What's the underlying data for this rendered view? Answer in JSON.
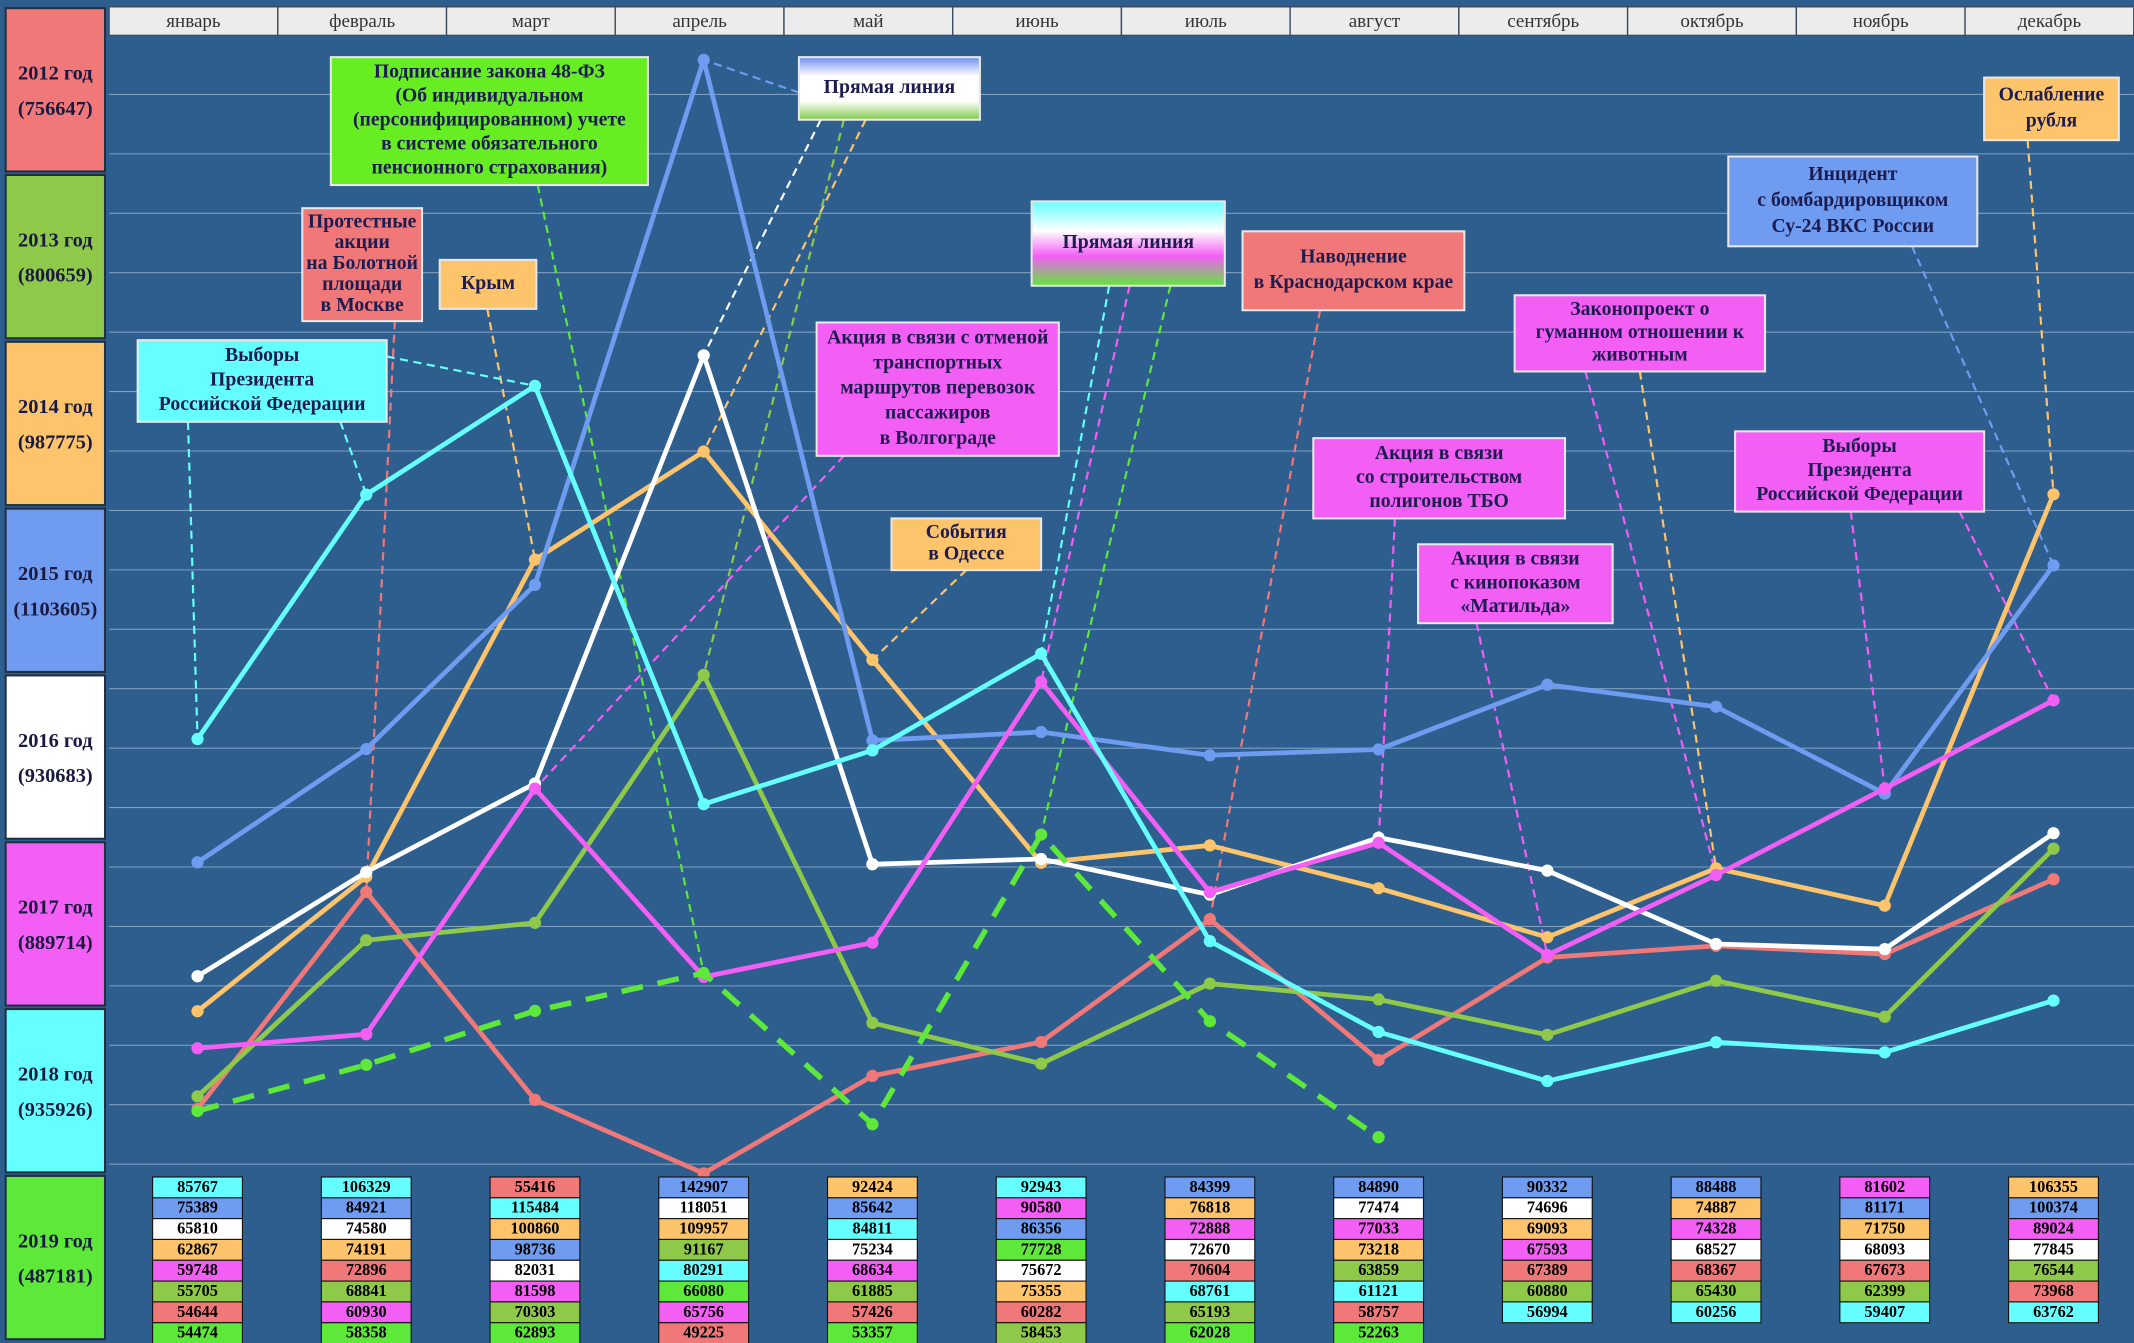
{
  "chart_data": {
    "type": "line",
    "categories": [
      "январь",
      "февраль",
      "март",
      "апрель",
      "май",
      "июнь",
      "июль",
      "август",
      "сентябрь",
      "октябрь",
      "ноябрь",
      "декабрь"
    ],
    "ylim": [
      49000,
      146000
    ],
    "yticks": [
      50000,
      55000,
      60000,
      65000,
      70000,
      75000,
      80000,
      85000,
      90000,
      95000,
      100000,
      105000,
      110000,
      115000,
      120000,
      125000,
      130000,
      135000,
      140000,
      145000
    ],
    "grid": true,
    "series": [
      {
        "name": "2012 год",
        "total_label": "(756647)",
        "color": "#f07878",
        "values": [
          54644,
          72896,
          55416,
          49225,
          57426,
          60282,
          70604,
          58757,
          67389,
          68367,
          67673,
          73968
        ]
      },
      {
        "name": "2013 год",
        "total_label": "(800659)",
        "color": "#8fc94a",
        "values": [
          55705,
          68841,
          70303,
          91167,
          61885,
          58453,
          65193,
          63859,
          60880,
          65430,
          62399,
          76544
        ]
      },
      {
        "name": "2014 год",
        "total_label": "(987775)",
        "color": "#fdc46b",
        "values": [
          62867,
          74191,
          100860,
          109957,
          92424,
          75355,
          76818,
          73218,
          69093,
          74887,
          71750,
          106355
        ]
      },
      {
        "name": "2015 год",
        "total_label": "(1103605)",
        "color": "#6f9cf0",
        "values": [
          75389,
          84921,
          98736,
          142907,
          85642,
          86356,
          84399,
          84890,
          90332,
          88488,
          81171,
          100374
        ]
      },
      {
        "name": "2016 год",
        "total_label": "(930683)",
        "color": "#ffffff",
        "values": [
          65810,
          74580,
          82031,
          118051,
          75234,
          75672,
          72670,
          77474,
          74696,
          68527,
          68093,
          77845
        ]
      },
      {
        "name": "2017 год",
        "total_label": "(889714)",
        "color": "#f35ef5",
        "values": [
          59748,
          60930,
          81598,
          65756,
          68634,
          90580,
          72888,
          77033,
          67593,
          74328,
          81602,
          89024
        ]
      },
      {
        "name": "2018 год",
        "total_label": "(935926)",
        "color": "#66ffff",
        "values": [
          85767,
          106329,
          115484,
          80291,
          84811,
          92943,
          68761,
          61121,
          56994,
          60256,
          59407,
          63762
        ]
      },
      {
        "name": "2019 год",
        "total_label": "(487181)",
        "color": "#5ee83a",
        "dashed": true,
        "values": [
          54474,
          58358,
          62893,
          66080,
          53357,
          77728,
          62028,
          52263,
          null,
          null,
          null,
          null
        ]
      }
    ],
    "annotations": [
      {
        "lines": [
          "Подписание закона 48-ФЗ",
          "(Об индивидуальном",
          "(персонифицированном) учете",
          "в системе обязательного",
          "пенсионного страхования)"
        ],
        "color": "#66ee22"
      },
      {
        "lines": [
          "Протестные",
          "акции",
          "на Болотной",
          "площади",
          "в Москве"
        ],
        "color": "#f07878"
      },
      {
        "lines": [
          "Крым"
        ],
        "color": "#fdc46b"
      },
      {
        "lines": [
          "Выборы",
          "Президента",
          "Российской Федерации"
        ],
        "color": "#66ffff"
      },
      {
        "lines": [
          "Прямая линия"
        ],
        "color": "url(#grad1)"
      },
      {
        "lines": [
          "Прямая линия"
        ],
        "color": "url(#grad2)"
      },
      {
        "lines": [
          "Акция в связи с отменой",
          "транспортных",
          "маршрутов перевозок",
          "пассажиров",
          "в Волгограде"
        ],
        "color": "#f35ef5"
      },
      {
        "lines": [
          "События",
          "в Одессе"
        ],
        "color": "#fdc46b"
      },
      {
        "lines": [
          "Наводнение",
          "в Краснодарском крае"
        ],
        "color": "#f07878"
      },
      {
        "lines": [
          "Законопроект о",
          "гуманном отношении к",
          "животным"
        ],
        "color": "#f35ef5"
      },
      {
        "lines": [
          "Акция в связи",
          "со строительством",
          "полигонов ТБО"
        ],
        "color": "#f35ef5"
      },
      {
        "lines": [
          "Акция в связи",
          "с кинопоказом",
          "«Матильда»"
        ],
        "color": "#f35ef5"
      },
      {
        "lines": [
          "Инцидент",
          "с бомбардировщиком",
          "Су-24 ВКС России"
        ],
        "color": "#6f9cf0"
      },
      {
        "lines": [
          "Выборы",
          "Президента",
          "Российской Федерации"
        ],
        "color": "#f35ef5"
      },
      {
        "lines": [
          "Ослабление",
          "рубля"
        ],
        "color": "#fdc46b"
      }
    ]
  }
}
